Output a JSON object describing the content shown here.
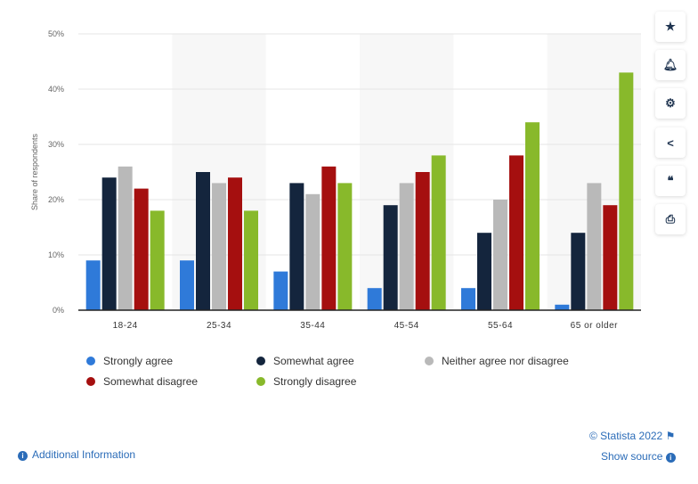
{
  "chart_data": {
    "type": "bar",
    "ylabel": "Share of respondents",
    "ylim": [
      0,
      50
    ],
    "yticks": [
      "0%",
      "10%",
      "20%",
      "30%",
      "40%",
      "50%"
    ],
    "grid": true,
    "legend_position": "bottom",
    "categories": [
      "18-24",
      "25-34",
      "35-44",
      "45-54",
      "55-64",
      "65 or older"
    ],
    "series": [
      {
        "name": "Strongly agree",
        "color": "#2f7ad9",
        "values": [
          9,
          9,
          7,
          4,
          4,
          1
        ]
      },
      {
        "name": "Somewhat agree",
        "color": "#14253d",
        "values": [
          24,
          25,
          23,
          19,
          14,
          14
        ]
      },
      {
        "name": "Neither agree nor disagree",
        "color": "#b9b9b9",
        "values": [
          26,
          23,
          21,
          23,
          20,
          23
        ]
      },
      {
        "name": "Somewhat disagree",
        "color": "#a50f0f",
        "values": [
          22,
          24,
          26,
          25,
          28,
          19
        ]
      },
      {
        "name": "Strongly disagree",
        "color": "#88b92b",
        "values": [
          18,
          18,
          23,
          28,
          34,
          43
        ]
      }
    ]
  },
  "sidebar": {
    "icons": [
      "star-icon",
      "bell-icon",
      "gear-icon",
      "share-icon",
      "quote-icon",
      "print-icon"
    ]
  },
  "footer": {
    "copyright": "© Statista 2022",
    "additional_info": "Additional Information",
    "show_source": "Show source"
  }
}
